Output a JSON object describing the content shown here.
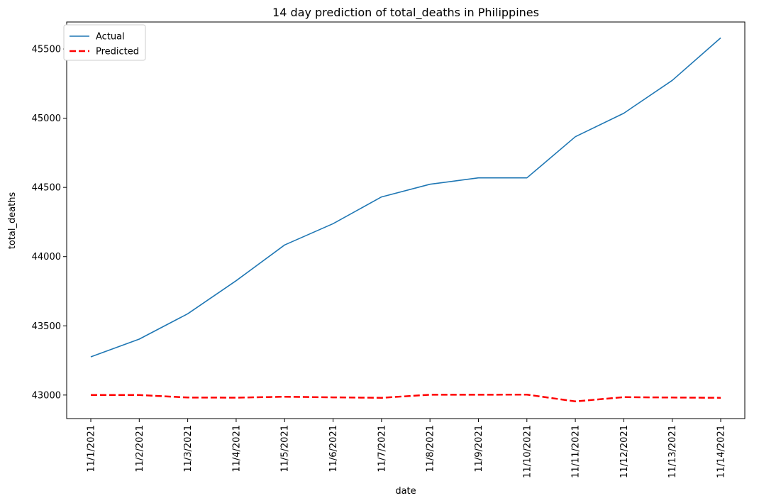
{
  "chart_data": {
    "type": "line",
    "title": "14 day prediction of total_deaths in Philippines",
    "xlabel": "date",
    "ylabel": "total_deaths",
    "categories": [
      "11/1/2021",
      "11/2/2021",
      "11/3/2021",
      "11/4/2021",
      "11/5/2021",
      "11/6/2021",
      "11/7/2021",
      "11/8/2021",
      "11/9/2021",
      "11/10/2021",
      "11/11/2021",
      "11/12/2021",
      "11/13/2021",
      "11/14/2021"
    ],
    "yticks": [
      43000,
      43500,
      44000,
      44500,
      45000,
      45500
    ],
    "ylim": [
      42830,
      45695
    ],
    "grid": false,
    "legend_position": "top-left",
    "series": [
      {
        "name": "Actual",
        "color": "#1f77b4",
        "style": "solid",
        "values": [
          43276,
          43404,
          43587,
          43826,
          44084,
          44238,
          44431,
          44523,
          44569,
          44569,
          44866,
          45036,
          45273,
          45580
        ]
      },
      {
        "name": "Predicted",
        "color": "#ff0000",
        "style": "dashed",
        "values": [
          43000,
          43000,
          42982,
          42981,
          42988,
          42983,
          42980,
          43002,
          43002,
          43003,
          42954,
          42985,
          42982,
          42980
        ]
      }
    ]
  }
}
